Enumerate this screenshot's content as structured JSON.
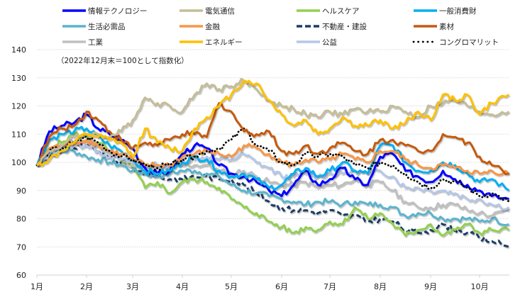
{
  "chart_data": {
    "type": "line",
    "title": "",
    "note": "（2022年12月末＝100として指数化）",
    "xlabel": "",
    "ylabel": "",
    "ylim": [
      60,
      140
    ],
    "yticks": [
      60,
      70,
      80,
      90,
      100,
      110,
      120,
      130,
      140
    ],
    "xtick_labels": [
      "1月",
      "2月",
      "3月",
      "4月",
      "5月",
      "6月",
      "7月",
      "8月",
      "9月",
      "10月"
    ],
    "x_range_months": [
      0,
      9.6
    ],
    "grid": true,
    "legend_position": "top",
    "x": [
      0,
      0.25,
      0.5,
      0.75,
      1.0,
      1.25,
      1.5,
      1.75,
      2.0,
      2.25,
      2.5,
      2.75,
      3.0,
      3.25,
      3.5,
      3.75,
      4.0,
      4.25,
      4.5,
      4.75,
      5.0,
      5.25,
      5.5,
      5.75,
      6.0,
      6.25,
      6.5,
      6.75,
      7.0,
      7.25,
      7.5,
      7.75,
      8.0,
      8.25,
      8.5,
      8.75,
      9.0,
      9.25,
      9.6
    ],
    "series": [
      {
        "name": "情報テクノロジー",
        "color": "#0000ff",
        "style": "solid",
        "values": [
          99,
          111,
          113,
          114,
          117,
          112,
          110,
          108,
          105,
          98,
          96,
          97,
          103,
          106,
          105,
          99,
          96,
          95,
          93,
          90,
          88,
          92,
          97,
          92,
          94,
          98,
          94,
          92,
          102,
          103,
          97,
          95,
          93,
          97,
          94,
          92,
          90,
          88,
          87
        ]
      },
      {
        "name": "電気通信",
        "color": "#c4bd97",
        "style": "solid",
        "values": [
          99,
          104,
          106,
          109,
          110,
          110,
          109,
          111,
          115,
          123,
          121,
          120,
          118,
          124,
          128,
          126,
          127,
          129,
          126,
          122,
          120,
          119,
          117,
          116,
          118,
          117,
          119,
          118,
          118,
          120,
          118,
          116,
          120,
          121,
          122,
          120,
          118,
          117,
          118
        ]
      },
      {
        "name": "ヘルスケア",
        "color": "#92d050",
        "style": "solid",
        "values": [
          99,
          105,
          107,
          110,
          109,
          107,
          104,
          101,
          98,
          91,
          93,
          89,
          93,
          94,
          93,
          91,
          87,
          84,
          82,
          79,
          77,
          75,
          77,
          76,
          79,
          78,
          84,
          80,
          82,
          78,
          74,
          76,
          78,
          74,
          76,
          78,
          75,
          76,
          76
        ]
      },
      {
        "name": "一般消費財",
        "color": "#00b0f0",
        "style": "solid",
        "values": [
          99,
          108,
          110,
          111,
          112,
          109,
          106,
          104,
          101,
          97,
          96,
          97,
          100,
          102,
          101,
          97,
          95,
          96,
          94,
          91,
          92,
          96,
          98,
          95,
          97,
          100,
          97,
          96,
          106,
          106,
          100,
          97,
          97,
          100,
          99,
          96,
          93,
          94,
          90
        ]
      },
      {
        "name": "生活必需品",
        "color": "#5ab4cd",
        "style": "solid",
        "values": [
          99,
          103,
          104,
          104,
          102,
          101,
          100,
          99,
          97,
          96,
          95,
          96,
          97,
          97,
          96,
          95,
          92,
          90,
          89,
          88,
          87,
          86,
          85,
          86,
          86,
          85,
          86,
          85,
          85,
          84,
          81,
          82,
          82,
          80,
          80,
          80,
          79,
          80,
          78
        ]
      },
      {
        "name": "金融",
        "color": "#f79646",
        "style": "solid",
        "values": [
          99,
          105,
          106,
          107,
          108,
          106,
          104,
          103,
          101,
          99,
          99,
          99,
          102,
          103,
          104,
          103,
          102,
          106,
          105,
          103,
          100,
          99,
          101,
          100,
          101,
          103,
          101,
          100,
          104,
          104,
          101,
          99,
          98,
          99,
          98,
          97,
          96,
          97,
          96
        ]
      },
      {
        "name": "不動産・建設",
        "color": "#1f3c64",
        "style": "dashed",
        "values": [
          99,
          102,
          104,
          105,
          106,
          104,
          101,
          100,
          98,
          96,
          95,
          94,
          94,
          95,
          95,
          94,
          94,
          92,
          89,
          86,
          84,
          83,
          83,
          82,
          83,
          81,
          81,
          79,
          80,
          79,
          76,
          75,
          76,
          78,
          76,
          75,
          73,
          72,
          70
        ]
      },
      {
        "name": "素材",
        "color": "#c55a11",
        "style": "solid",
        "values": [
          99,
          109,
          112,
          113,
          118,
          115,
          111,
          108,
          105,
          107,
          106,
          108,
          110,
          110,
          109,
          121,
          118,
          111,
          110,
          111,
          104,
          103,
          106,
          103,
          105,
          107,
          104,
          103,
          108,
          108,
          106,
          104,
          104,
          110,
          109,
          107,
          102,
          99,
          96
        ]
      },
      {
        "name": "工業",
        "color": "#bfbfbf",
        "style": "solid",
        "values": [
          99,
          104,
          106,
          107,
          108,
          106,
          103,
          101,
          99,
          98,
          98,
          98,
          99,
          99,
          99,
          97,
          96,
          97,
          95,
          93,
          92,
          92,
          93,
          91,
          92,
          92,
          94,
          92,
          93,
          90,
          86,
          84,
          84,
          85,
          85,
          83,
          82,
          81,
          83
        ]
      },
      {
        "name": "エネルギー",
        "color": "#ffc000",
        "style": "solid",
        "values": [
          99,
          101,
          104,
          107,
          110,
          109,
          108,
          107,
          102,
          112,
          107,
          105,
          104,
          112,
          116,
          120,
          124,
          129,
          128,
          122,
          117,
          113,
          115,
          110,
          112,
          116,
          113,
          113,
          115,
          112,
          114,
          118,
          115,
          124,
          122,
          124,
          117,
          121,
          124
        ]
      },
      {
        "name": "公益",
        "color": "#b4c7e7",
        "style": "solid",
        "values": [
          99,
          103,
          105,
          106,
          106,
          104,
          102,
          101,
          100,
          99,
          99,
          99,
          101,
          101,
          102,
          101,
          101,
          103,
          100,
          98,
          95,
          95,
          96,
          95,
          96,
          96,
          97,
          96,
          97,
          95,
          91,
          91,
          90,
          90,
          89,
          87,
          87,
          85,
          84
        ]
      },
      {
        "name": "コングロマリット",
        "color": "#000000",
        "style": "dotted",
        "values": [
          99,
          104,
          105,
          107,
          109,
          107,
          104,
          102,
          101,
          99,
          98,
          99,
          101,
          102,
          104,
          105,
          108,
          112,
          106,
          104,
          100,
          99,
          103,
          102,
          103,
          102,
          99,
          98,
          100,
          99,
          96,
          93,
          91,
          94,
          93,
          91,
          88,
          89,
          86
        ]
      }
    ]
  }
}
